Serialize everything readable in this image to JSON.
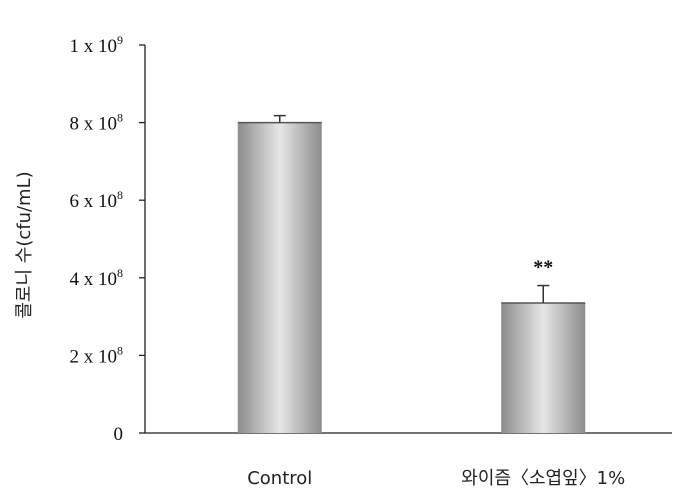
{
  "chart_data": {
    "type": "bar",
    "ylabel": "콜로니 수(cfu/mL)",
    "xlabel": "",
    "categories": [
      "Control",
      "와이즘〈소엽잎〉1%"
    ],
    "values": [
      800000000,
      335000000
    ],
    "errors": [
      18000000,
      45000000
    ],
    "significance": [
      "",
      "**"
    ],
    "ylim": [
      0,
      1000000000
    ],
    "yticks": [
      {
        "value": 0,
        "base": "0",
        "exp": ""
      },
      {
        "value": 200000000,
        "base": "2 x 10",
        "exp": "8"
      },
      {
        "value": 400000000,
        "base": "4 x 10",
        "exp": "8"
      },
      {
        "value": 600000000,
        "base": "6 x 10",
        "exp": "8"
      },
      {
        "value": 800000000,
        "base": "8 x 10",
        "exp": "8"
      },
      {
        "value": 1000000000,
        "base": "1 x 10",
        "exp": "9"
      }
    ],
    "grid": false,
    "bar_colors": {
      "edge": "#8c8c8c",
      "center": "#e6e6e6"
    }
  }
}
